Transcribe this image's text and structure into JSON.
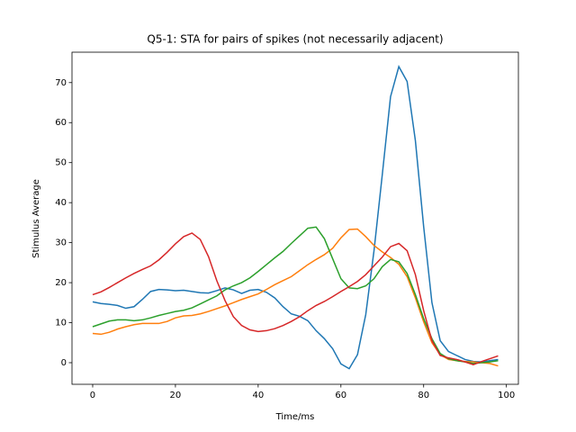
{
  "chart_data": {
    "type": "line",
    "title": "Q5-1: STA for pairs of spikes (not necessarily adjacent)",
    "x_label": "Time/ms",
    "y_label": "Stimulus Average",
    "x": [
      0,
      2,
      4,
      6,
      8,
      10,
      12,
      14,
      16,
      18,
      20,
      22,
      24,
      26,
      28,
      30,
      32,
      34,
      36,
      38,
      40,
      42,
      44,
      46,
      48,
      50,
      52,
      54,
      56,
      58,
      60,
      62,
      64,
      66,
      68,
      70,
      72,
      74,
      76,
      78,
      80,
      82,
      84,
      86,
      88,
      90,
      92,
      94,
      96,
      98
    ],
    "series": [
      {
        "color": "#1f77b4",
        "values": [
          15.2,
          14.8,
          14.6,
          14.3,
          13.6,
          14.0,
          15.8,
          17.8,
          18.3,
          18.2,
          18.0,
          18.1,
          17.8,
          17.5,
          17.4,
          18.0,
          18.7,
          18.2,
          17.3,
          18.1,
          18.3,
          17.6,
          16.2,
          14.0,
          12.2,
          11.6,
          10.5,
          8.0,
          6.0,
          3.5,
          -0.3,
          -1.5,
          2.0,
          12.0,
          28.0,
          47.0,
          66.5,
          74.0,
          70.3,
          55.5,
          34.0,
          15.0,
          5.5,
          2.8,
          1.8,
          0.8,
          0.3,
          0.2,
          0.5,
          0.8
        ]
      },
      {
        "color": "#ff7f0e",
        "values": [
          7.3,
          7.1,
          7.6,
          8.4,
          9.0,
          9.5,
          9.8,
          9.8,
          9.8,
          10.3,
          11.2,
          11.7,
          11.8,
          12.2,
          12.8,
          13.5,
          14.2,
          15.0,
          15.8,
          16.5,
          17.2,
          18.3,
          19.5,
          20.5,
          21.5,
          23.0,
          24.5,
          25.8,
          27.0,
          28.6,
          31.2,
          33.3,
          33.4,
          31.5,
          29.3,
          27.7,
          26.3,
          24.6,
          21.5,
          16.2,
          10.2,
          5.0,
          2.0,
          0.8,
          0.5,
          0.3,
          0.2,
          0.0,
          -0.2,
          -0.8
        ]
      },
      {
        "color": "#2ca02c",
        "values": [
          9.0,
          9.7,
          10.4,
          10.7,
          10.7,
          10.5,
          10.7,
          11.2,
          11.8,
          12.3,
          12.8,
          13.1,
          13.7,
          14.7,
          15.7,
          16.7,
          18.2,
          19.2,
          20.0,
          21.2,
          22.8,
          24.5,
          26.2,
          27.8,
          29.8,
          31.7,
          33.6,
          33.9,
          31.0,
          26.0,
          21.0,
          18.7,
          18.5,
          19.2,
          21.0,
          24.0,
          25.8,
          25.2,
          22.3,
          17.0,
          11.0,
          6.0,
          2.3,
          1.0,
          0.5,
          0.2,
          -0.2,
          0.0,
          0.2,
          0.5
        ]
      },
      {
        "color": "#d62728",
        "values": [
          17.0,
          17.7,
          18.8,
          20.0,
          21.2,
          22.3,
          23.3,
          24.2,
          25.7,
          27.6,
          29.7,
          31.5,
          32.4,
          30.8,
          26.5,
          20.5,
          15.5,
          11.5,
          9.3,
          8.2,
          7.8,
          8.0,
          8.5,
          9.3,
          10.3,
          11.5,
          13.0,
          14.3,
          15.3,
          16.5,
          17.8,
          19.0,
          20.3,
          22.0,
          24.2,
          26.4,
          29.0,
          29.8,
          28.0,
          22.0,
          13.0,
          5.5,
          1.8,
          1.2,
          0.8,
          0.2,
          -0.5,
          0.3,
          1.0,
          1.7
        ]
      }
    ],
    "xlim": [
      -5,
      102.9
    ],
    "ylim": [
      -5.4,
      77.6
    ],
    "xticks": [
      0,
      20,
      40,
      60,
      80,
      100
    ],
    "yticks": [
      0,
      10,
      20,
      30,
      40,
      50,
      60,
      70
    ]
  }
}
